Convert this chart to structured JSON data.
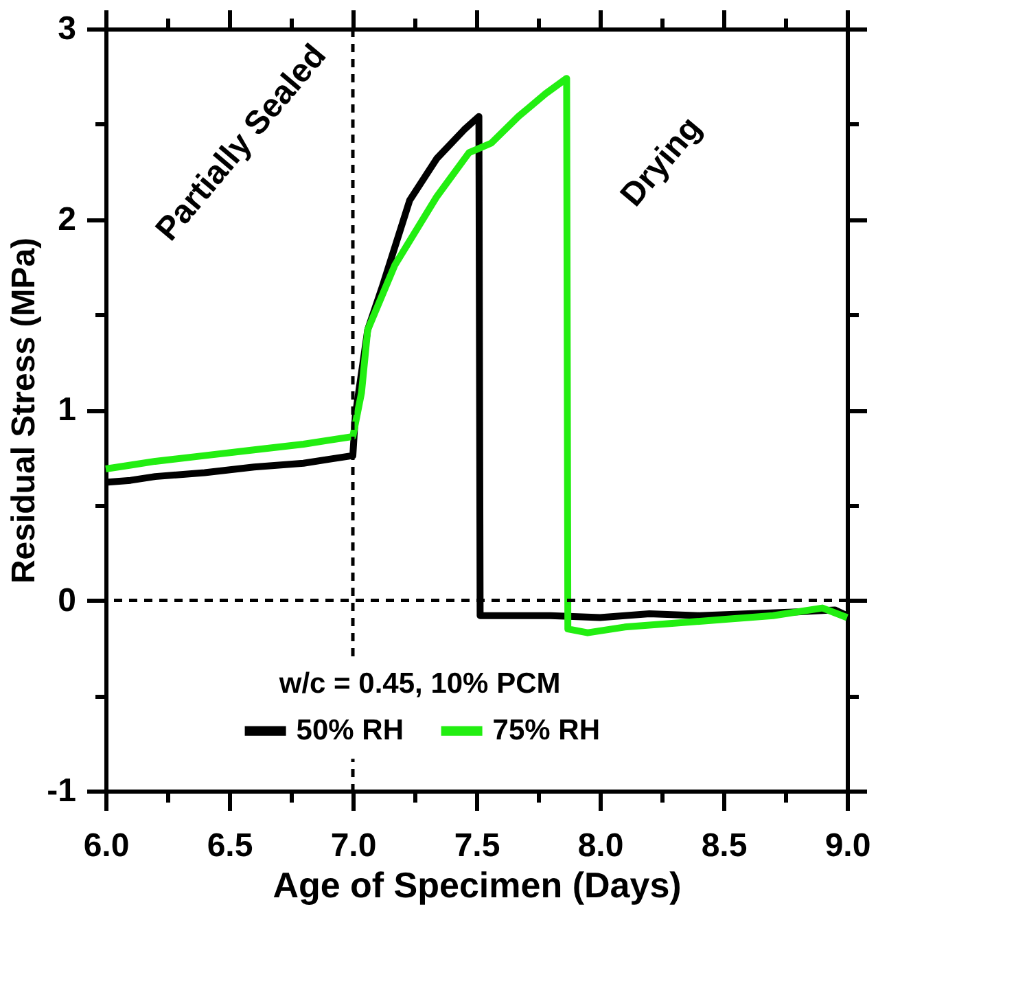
{
  "chart_data": {
    "type": "line",
    "xlabel": "Age of Specimen (Days)",
    "ylabel": "Residual Stress (MPa)",
    "legend_title": "w/c = 0.45, 10% PCM",
    "legend": "bottom",
    "grid": false,
    "line_style": "solid",
    "marker": "none",
    "xlim": [
      6,
      9
    ],
    "ylim": [
      -1,
      3
    ],
    "xticks": [
      {
        "value": 6,
        "label": "6.0"
      },
      {
        "value": 6.25,
        "label": null
      },
      {
        "value": 6.5,
        "label": "6.5"
      },
      {
        "value": 6.75,
        "label": null
      },
      {
        "value": 7,
        "label": "7.0"
      },
      {
        "value": 7.25,
        "label": null
      },
      {
        "value": 7.5,
        "label": "7.5"
      },
      {
        "value": 7.75,
        "label": null
      },
      {
        "value": 8,
        "label": "8.0"
      },
      {
        "value": 8.25,
        "label": null
      },
      {
        "value": 8.5,
        "label": "8.5"
      },
      {
        "value": 8.75,
        "label": null
      },
      {
        "value": 9,
        "label": "9.0"
      }
    ],
    "yticks": [
      -1,
      {
        "value": -0.5,
        "label": null
      },
      0,
      {
        "value": 0.5,
        "label": null
      },
      1,
      {
        "value": 1.5,
        "label": null
      },
      2,
      {
        "value": 2.5,
        "label": null
      },
      3
    ],
    "ref_lines": [
      {
        "axis": "x",
        "value": 7,
        "line_style": "dashed",
        "color": "#000000"
      },
      {
        "axis": "y",
        "value": 0,
        "line_style": "dashed",
        "color": "#000000"
      }
    ],
    "annotations": [
      "Partially Sealed",
      "Drying"
    ],
    "series": [
      {
        "name": "50% RH",
        "color": "#000000",
        "x": [
          6.0,
          6.1,
          6.2,
          6.4,
          6.6,
          6.8,
          6.9,
          7.0,
          7.01,
          7.06,
          7.12,
          7.23,
          7.34,
          7.45,
          7.51,
          7.515,
          7.6,
          7.8,
          8.0,
          8.2,
          8.4,
          8.6,
          8.8,
          8.95,
          9.0
        ],
        "values": [
          0.62,
          0.63,
          0.65,
          0.67,
          0.7,
          0.72,
          0.74,
          0.76,
          0.97,
          1.42,
          1.65,
          2.1,
          2.32,
          2.47,
          2.54,
          -0.08,
          -0.08,
          -0.08,
          -0.09,
          -0.07,
          -0.08,
          -0.07,
          -0.06,
          -0.05,
          -0.08
        ]
      },
      {
        "name": "75% RH",
        "color": "#22ee11",
        "x": [
          6.0,
          6.1,
          6.2,
          6.4,
          6.6,
          6.8,
          6.9,
          7.0,
          7.035,
          7.06,
          7.17,
          7.34,
          7.47,
          7.56,
          7.67,
          7.78,
          7.865,
          7.87,
          7.95,
          8.1,
          8.3,
          8.5,
          8.7,
          8.9,
          9.0
        ],
        "values": [
          0.69,
          0.71,
          0.73,
          0.76,
          0.79,
          0.82,
          0.84,
          0.86,
          1.09,
          1.42,
          1.76,
          2.12,
          2.35,
          2.4,
          2.54,
          2.66,
          2.74,
          -0.15,
          -0.17,
          -0.14,
          -0.12,
          -0.1,
          -0.08,
          -0.04,
          -0.09
        ]
      }
    ]
  }
}
